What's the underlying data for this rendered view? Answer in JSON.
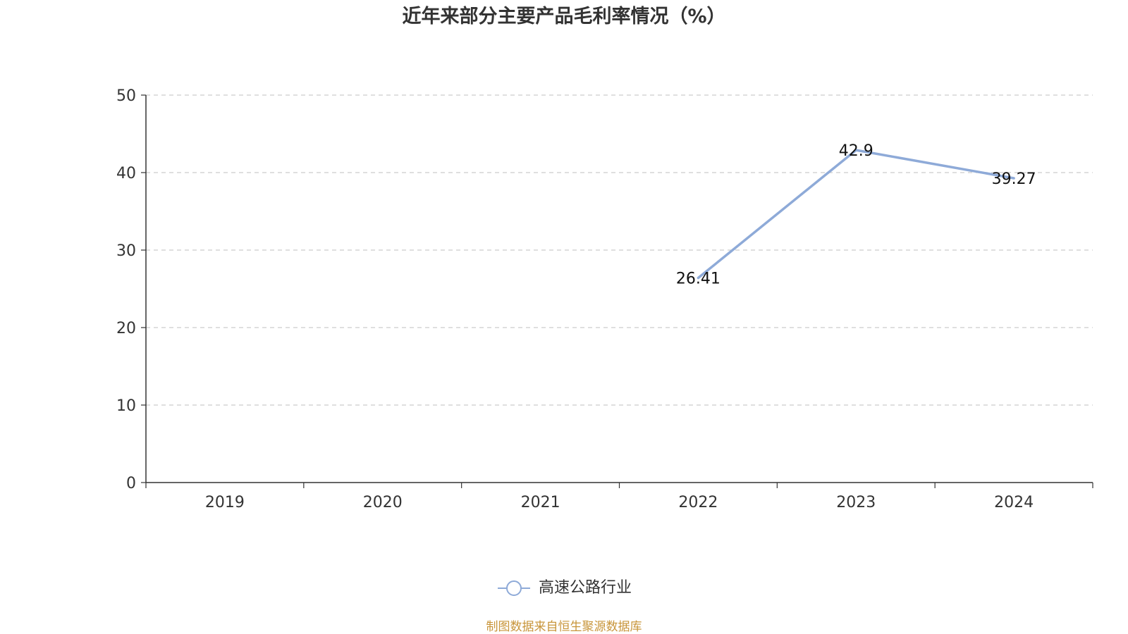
{
  "chart_data": {
    "type": "line",
    "title": "近年来部分主要产品毛利率情况（%）",
    "categories": [
      "2019",
      "2020",
      "2021",
      "2022",
      "2023",
      "2024"
    ],
    "series": [
      {
        "name": "高速公路行业",
        "values": [
          null,
          null,
          null,
          26.41,
          42.9,
          39.27
        ],
        "labels": [
          "",
          "",
          "",
          "26.41",
          "42.9",
          "39.27"
        ],
        "color": "#8eaad8"
      }
    ],
    "yticks": [
      "0",
      "10",
      "20",
      "30",
      "40",
      "50"
    ],
    "ylim": [
      0,
      50
    ],
    "grid": true,
    "legend": "bottom-center"
  },
  "footer": {
    "source": "制图数据来自恒生聚源数据库"
  },
  "colors": {
    "axis": "#333333",
    "grid": "#cccccc",
    "source_text": "#c8953a"
  }
}
